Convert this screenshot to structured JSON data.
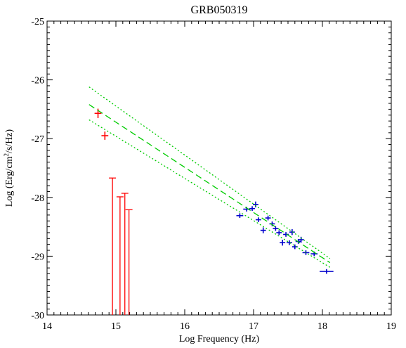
{
  "chart_data": {
    "type": "scatter",
    "title": "GRB050319",
    "xlabel": "Log Frequency (Hz)",
    "ylabel_parts": [
      "Log (Erg/cm",
      "2",
      "/s/Hz)"
    ],
    "xlim": [
      14,
      19
    ],
    "ylim": [
      -30,
      -25
    ],
    "xticks": [
      14,
      15,
      16,
      17,
      18,
      19
    ],
    "yticks": [
      -30,
      -29,
      -28,
      -27,
      -26,
      -25
    ],
    "xtick_labels": [
      "14",
      "15",
      "16",
      "17",
      "18",
      "19"
    ],
    "ytick_labels": [
      "-30",
      "-29",
      "-28",
      "-27",
      "-26",
      "-25"
    ],
    "grid": false,
    "colors": {
      "optical": "#ff0000",
      "upper_limits": "#ff0000",
      "xray": "#0000cc",
      "fit": "#00cc00",
      "axis": "#000000"
    },
    "series": [
      {
        "kind": "points",
        "color_key": "optical",
        "points": [
          {
            "x": 14.74,
            "y": -26.57,
            "xerr": 0.05,
            "yerr": 0.08
          },
          {
            "x": 14.84,
            "y": -26.95,
            "xerr": 0.05,
            "yerr": 0.07
          }
        ]
      },
      {
        "kind": "upper_limits",
        "color_key": "upper_limits",
        "points": [
          {
            "x": 14.95,
            "y": -27.67
          },
          {
            "x": 15.06,
            "y": -27.99
          },
          {
            "x": 15.13,
            "y": -27.93
          },
          {
            "x": 15.19,
            "y": -28.21
          }
        ]
      },
      {
        "kind": "points",
        "color_key": "xray",
        "points": [
          {
            "x": 16.8,
            "y": -28.31,
            "xerr": 0.05,
            "yerr": 0.04
          },
          {
            "x": 16.9,
            "y": -28.2,
            "xerr": 0.05,
            "yerr": 0.04
          },
          {
            "x": 16.98,
            "y": -28.19,
            "xerr": 0.04,
            "yerr": 0.04
          },
          {
            "x": 17.03,
            "y": -28.12,
            "xerr": 0.04,
            "yerr": 0.05
          },
          {
            "x": 17.07,
            "y": -28.38,
            "xerr": 0.04,
            "yerr": 0.04
          },
          {
            "x": 17.14,
            "y": -28.56,
            "xerr": 0.04,
            "yerr": 0.05
          },
          {
            "x": 17.21,
            "y": -28.35,
            "xerr": 0.04,
            "yerr": 0.04
          },
          {
            "x": 17.27,
            "y": -28.45,
            "xerr": 0.04,
            "yerr": 0.04
          },
          {
            "x": 17.32,
            "y": -28.53,
            "xerr": 0.04,
            "yerr": 0.04
          },
          {
            "x": 17.37,
            "y": -28.6,
            "xerr": 0.04,
            "yerr": 0.04
          },
          {
            "x": 17.42,
            "y": -28.77,
            "xerr": 0.04,
            "yerr": 0.05
          },
          {
            "x": 17.47,
            "y": -28.63,
            "xerr": 0.04,
            "yerr": 0.04
          },
          {
            "x": 17.52,
            "y": -28.77,
            "xerr": 0.04,
            "yerr": 0.04
          },
          {
            "x": 17.56,
            "y": -28.59,
            "xerr": 0.04,
            "yerr": 0.05
          },
          {
            "x": 17.6,
            "y": -28.84,
            "xerr": 0.04,
            "yerr": 0.04
          },
          {
            "x": 17.65,
            "y": -28.75,
            "xerr": 0.04,
            "yerr": 0.04
          },
          {
            "x": 17.69,
            "y": -28.72,
            "xerr": 0.04,
            "yerr": 0.05
          },
          {
            "x": 17.76,
            "y": -28.94,
            "xerr": 0.05,
            "yerr": 0.04
          },
          {
            "x": 17.88,
            "y": -28.96,
            "xerr": 0.05,
            "yerr": 0.04
          },
          {
            "x": 18.06,
            "y": -29.26,
            "xerr": 0.1,
            "yerr": 0.04
          }
        ]
      },
      {
        "kind": "fit_line",
        "color_key": "fit",
        "style": "dashed",
        "x": [
          14.61,
          18.11
        ],
        "y": [
          -26.42,
          -29.11
        ]
      },
      {
        "kind": "fit_bound",
        "color_key": "fit",
        "style": "dotted",
        "x": [
          14.61,
          18.11
        ],
        "y": [
          -26.12,
          -29.04
        ]
      },
      {
        "kind": "fit_bound",
        "color_key": "fit",
        "style": "dotted",
        "x": [
          14.61,
          18.11
        ],
        "y": [
          -26.68,
          -29.19
        ]
      }
    ]
  }
}
